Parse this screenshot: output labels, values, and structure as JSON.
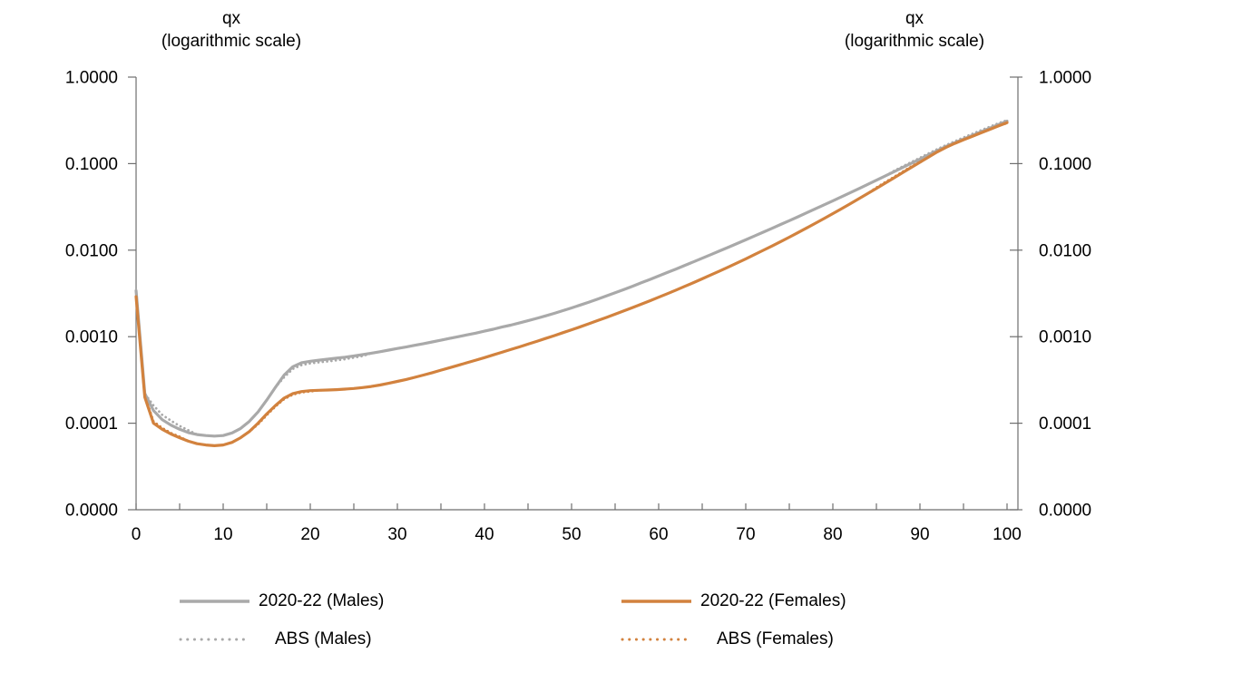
{
  "chart_data": {
    "type": "line",
    "y_axis_title": {
      "line1": "qx",
      "line2": "(logarithmic scale)"
    },
    "x_axis": {
      "range": [
        0,
        100
      ],
      "major_ticks": [
        0,
        10,
        20,
        30,
        40,
        50,
        60,
        70,
        80,
        90,
        100
      ],
      "minor_step": 5
    },
    "y_axis": {
      "scale": "logarithmic",
      "tick_labels": [
        "1.0000",
        "0.1000",
        "0.0100",
        "0.0010",
        "0.0001",
        "0.0000"
      ],
      "decades": 5,
      "dual_axes": true
    },
    "legend_position": "bottom",
    "ages_from": 0,
    "ages_step": 1,
    "series": [
      {
        "name": "2020-22 (Males)",
        "style": "solid",
        "color": "#A9A9A9",
        "values": [
          0.0034,
          0.00022,
          0.00014,
          0.00011,
          9.5e-05,
          8.5e-05,
          7.8e-05,
          7.4e-05,
          7.2e-05,
          7.1e-05,
          7.2e-05,
          7.7e-05,
          8.7e-05,
          0.000105,
          0.000135,
          0.000185,
          0.00026,
          0.00036,
          0.00045,
          0.0005,
          0.00052,
          0.000535,
          0.00055,
          0.000565,
          0.00058,
          0.0006,
          0.00062,
          0.000645,
          0.00067,
          0.0007,
          0.00073,
          0.00076,
          0.000795,
          0.00083,
          0.00087,
          0.00091,
          0.000955,
          0.001,
          0.00105,
          0.0011,
          0.00116,
          0.00122,
          0.00129,
          0.00136,
          0.00144,
          0.00153,
          0.00163,
          0.00174,
          0.00186,
          0.002,
          0.00215,
          0.00232,
          0.00251,
          0.00272,
          0.00296,
          0.00322,
          0.00351,
          0.00383,
          0.00419,
          0.00459,
          0.00503,
          0.00552,
          0.00606,
          0.00666,
          0.00733,
          0.00807,
          0.00889,
          0.0098,
          0.01081,
          0.01193,
          0.01318,
          0.01457,
          0.01612,
          0.01785,
          0.01978,
          0.02193,
          0.02433,
          0.02702,
          0.03003,
          0.0334,
          0.03718,
          0.04142,
          0.04618,
          0.05153,
          0.05754,
          0.0643,
          0.0719,
          0.08044,
          0.09004,
          0.10083,
          0.11295,
          0.12654,
          0.14177,
          0.158,
          0.1745,
          0.1925,
          0.212,
          0.2335,
          0.257,
          0.2825,
          0.31
        ]
      },
      {
        "name": "2020-22 (Females)",
        "style": "solid",
        "color": "#D2823E",
        "values": [
          0.0029,
          0.0002,
          0.0001,
          8.5e-05,
          7.5e-05,
          6.8e-05,
          6.2e-05,
          5.8e-05,
          5.6e-05,
          5.5e-05,
          5.6e-05,
          6e-05,
          6.8e-05,
          8e-05,
          0.0001,
          0.000128,
          0.00016,
          0.000195,
          0.00022,
          0.000232,
          0.000238,
          0.00024,
          0.000242,
          0.000244,
          0.000248,
          0.000252,
          0.000258,
          0.000266,
          0.000276,
          0.000289,
          0.000304,
          0.00032,
          0.000339,
          0.00036,
          0.000384,
          0.00041,
          0.000438,
          0.000468,
          0.0005,
          0.000535,
          0.000573,
          0.000615,
          0.00066,
          0.000709,
          0.000762,
          0.00082,
          0.000883,
          0.000952,
          0.001028,
          0.001111,
          0.001202,
          0.001302,
          0.001413,
          0.001535,
          0.00167,
          0.001819,
          0.001985,
          0.002169,
          0.002374,
          0.002602,
          0.002857,
          0.003141,
          0.003459,
          0.003815,
          0.004215,
          0.004664,
          0.00517,
          0.00574,
          0.006384,
          0.007113,
          0.007939,
          0.008877,
          0.009944,
          0.01116,
          0.012549,
          0.014138,
          0.01596,
          0.018053,
          0.020461,
          0.023237,
          0.02644,
          0.03014,
          0.03442,
          0.03937,
          0.0451,
          0.05173,
          0.0594,
          0.06827,
          0.0785,
          0.09027,
          0.10377,
          0.1192,
          0.13674,
          0.1545,
          0.1715,
          0.1885,
          0.2065,
          0.2265,
          0.2485,
          0.2725,
          0.298
        ]
      },
      {
        "name": "ABS (Males)",
        "style": "dotted",
        "color": "#A9A9A9",
        "values": [
          0.0034,
          0.00022,
          0.00016,
          0.000125,
          0.000107,
          9.3e-05,
          8.3e-05,
          7.4e-05,
          7.2e-05,
          7.1e-05,
          7.2e-05,
          7.7e-05,
          8.7e-05,
          0.000105,
          0.000135,
          0.000185,
          0.00026,
          0.00034,
          0.000425,
          0.00047,
          0.000492,
          0.000505,
          0.000518,
          0.000533,
          0.000549,
          0.000572,
          0.000597,
          0.000645,
          0.00067,
          0.0007,
          0.00073,
          0.00076,
          0.000795,
          0.00083,
          0.00087,
          0.00091,
          0.000955,
          0.001,
          0.00105,
          0.0011,
          0.00116,
          0.00122,
          0.00129,
          0.00136,
          0.00144,
          0.00153,
          0.00163,
          0.00174,
          0.00186,
          0.002,
          0.00215,
          0.00232,
          0.00251,
          0.00272,
          0.00296,
          0.00322,
          0.00351,
          0.00383,
          0.00419,
          0.00459,
          0.00503,
          0.00552,
          0.00606,
          0.00666,
          0.00733,
          0.00807,
          0.00889,
          0.0098,
          0.01081,
          0.01193,
          0.01318,
          0.01457,
          0.01612,
          0.01785,
          0.01978,
          0.02193,
          0.02433,
          0.02702,
          0.03003,
          0.0334,
          0.03718,
          0.04142,
          0.04618,
          0.05153,
          0.05754,
          0.0643,
          0.0719,
          0.0822,
          0.0925,
          0.1042,
          0.1168,
          0.1312,
          0.1472,
          0.1638,
          0.1812,
          0.2005,
          0.2205,
          0.2425,
          0.2665,
          0.293,
          0.318
        ]
      },
      {
        "name": "ABS (Females)",
        "style": "dotted",
        "color": "#D2823E",
        "values": [
          0.0029,
          0.00021,
          0.000105,
          8.8e-05,
          7.7e-05,
          7e-05,
          6.2e-05,
          5.8e-05,
          5.6e-05,
          5.5e-05,
          5.6e-05,
          6e-05,
          6.8e-05,
          8e-05,
          9.7e-05,
          0.000124,
          0.000156,
          0.00019,
          0.000214,
          0.000227,
          0.000233,
          0.00024,
          0.000242,
          0.000244,
          0.000248,
          0.000252,
          0.000258,
          0.000266,
          0.000276,
          0.000289,
          0.000304,
          0.00032,
          0.000339,
          0.00036,
          0.000384,
          0.00041,
          0.000438,
          0.000468,
          0.0005,
          0.000535,
          0.000573,
          0.000615,
          0.00066,
          0.000709,
          0.000762,
          0.00082,
          0.000883,
          0.000952,
          0.001028,
          0.001111,
          0.001202,
          0.001302,
          0.001413,
          0.001535,
          0.00167,
          0.001819,
          0.001985,
          0.002169,
          0.002374,
          0.002602,
          0.002857,
          0.003141,
          0.003459,
          0.003815,
          0.004215,
          0.004664,
          0.00517,
          0.00574,
          0.006384,
          0.007113,
          0.007939,
          0.008877,
          0.009944,
          0.01116,
          0.012549,
          0.014138,
          0.01596,
          0.018053,
          0.020461,
          0.023237,
          0.02644,
          0.03014,
          0.03442,
          0.03937,
          0.0451,
          0.053,
          0.0609,
          0.07,
          0.0805,
          0.0926,
          0.1064,
          0.1222,
          0.1401,
          0.1582,
          0.1755,
          0.193,
          0.2115,
          0.2318,
          0.2542,
          0.2788,
          0.292
        ]
      }
    ]
  },
  "colors": {
    "male_line": "#A9A9A9",
    "female_line": "#D2823E",
    "axis": "#6E6E6E",
    "text": "#000000"
  }
}
